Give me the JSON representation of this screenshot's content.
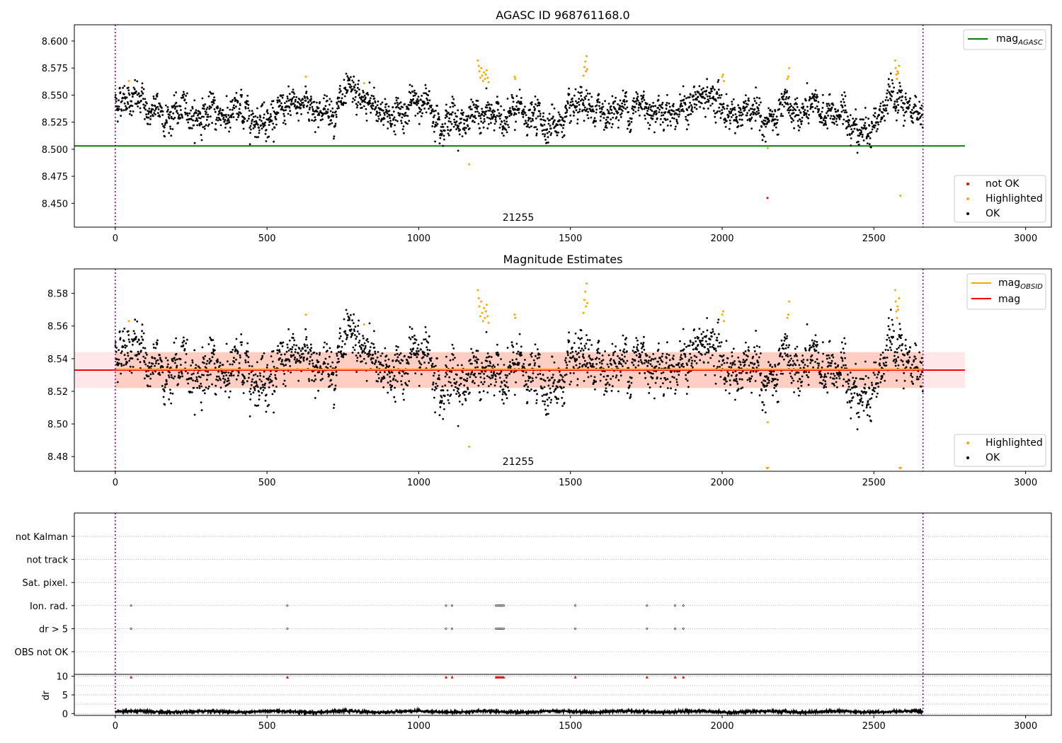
{
  "chart_data": [
    {
      "type": "scatter",
      "title": "AGASC ID 968761168.0",
      "xlim": [
        -135,
        3085
      ],
      "ylim": [
        8.428,
        8.615
      ],
      "xticks": [
        0,
        500,
        1000,
        1500,
        2000,
        2500,
        3000
      ],
      "yticks": [
        8.45,
        8.475,
        8.5,
        8.525,
        8.55,
        8.575,
        8.6
      ],
      "ytick_labels": [
        "8.450",
        "8.475",
        "8.500",
        "8.525",
        "8.550",
        "8.575",
        "8.600"
      ],
      "vlines": [
        0,
        2662
      ],
      "annotation": {
        "text": "21255",
        "x": 1330,
        "y": 8.432
      },
      "hline": {
        "name": "mag",
        "sub": "AGASC",
        "y": 8.503,
        "x0": -135,
        "x1": 2800,
        "color": "#008000"
      },
      "legend_top": [
        {
          "label": "mag",
          "sub": "AGASC",
          "color": "#008000",
          "kind": "line"
        }
      ],
      "legend_bottom": [
        {
          "label": "not OK",
          "color": "#ff0000",
          "kind": "point"
        },
        {
          "label": "Highlighted",
          "color": "#ffa500",
          "kind": "point"
        },
        {
          "label": "OK",
          "color": "#000000",
          "kind": "point"
        }
      ],
      "series": [
        {
          "name": "OK",
          "color": "#000000",
          "generated": {
            "n": 2662,
            "x0": 0,
            "x1": 2662,
            "mean": 8.533,
            "spread": 0.0065,
            "bumps": [
              [
                40,
                50,
                0.018
              ],
              [
                630,
                30,
                0.012
              ],
              [
                780,
                80,
                0.01
              ],
              [
                1010,
                50,
                0.01
              ],
              [
                1170,
                80,
                -0.006
              ],
              [
                1450,
                90,
                -0.008
              ],
              [
                1750,
                120,
                0.008
              ],
              [
                1950,
                60,
                0.012
              ],
              [
                2150,
                60,
                -0.008
              ],
              [
                2460,
                40,
                -0.012
              ],
              [
                2560,
                30,
                0.01
              ]
            ]
          }
        },
        {
          "name": "Highlighted",
          "color": "#ffa500",
          "points": [
            [
              45,
              8.563
            ],
            [
              628,
              8.567
            ],
            [
              820,
              8.561
            ],
            [
              1166,
              8.486
            ],
            [
              1195,
              8.582
            ],
            [
              1198,
              8.577
            ],
            [
              1200,
              8.572
            ],
            [
              1203,
              8.566
            ],
            [
              1206,
              8.575
            ],
            [
              1209,
              8.568
            ],
            [
              1212,
              8.563
            ],
            [
              1215,
              8.571
            ],
            [
              1218,
              8.565
            ],
            [
              1221,
              8.569
            ],
            [
              1224,
              8.573
            ],
            [
              1227,
              8.566
            ],
            [
              1230,
              8.562
            ],
            [
              1316,
              8.567
            ],
            [
              1318,
              8.565
            ],
            [
              1543,
              8.568
            ],
            [
              1546,
              8.576
            ],
            [
              1549,
              8.581
            ],
            [
              1551,
              8.572
            ],
            [
              1553,
              8.586
            ],
            [
              1555,
              8.574
            ],
            [
              2000,
              8.567
            ],
            [
              2003,
              8.569
            ],
            [
              2006,
              8.563
            ],
            [
              2150,
              8.501
            ],
            [
              2215,
              8.565
            ],
            [
              2218,
              8.567
            ],
            [
              2221,
              8.575
            ],
            [
              2570,
              8.582
            ],
            [
              2572,
              8.575
            ],
            [
              2574,
              8.569
            ],
            [
              2576,
              8.565
            ],
            [
              2578,
              8.572
            ],
            [
              2580,
              8.57
            ],
            [
              2583,
              8.577
            ],
            [
              2587,
              8.457
            ]
          ]
        },
        {
          "name": "not OK",
          "color": "#ff0000",
          "points": [
            [
              2149,
              8.455
            ]
          ]
        }
      ]
    },
    {
      "type": "scatter",
      "title": "Magnitude Estimates",
      "xlim": [
        -135,
        3085
      ],
      "ylim": [
        8.471,
        8.595
      ],
      "xticks": [
        0,
        500,
        1000,
        1500,
        2000,
        2500,
        3000
      ],
      "yticks": [
        8.48,
        8.5,
        8.52,
        8.54,
        8.56,
        8.58
      ],
      "ytick_labels": [
        "8.48",
        "8.50",
        "8.52",
        "8.54",
        "8.56",
        "8.58"
      ],
      "vlines": [
        0,
        2662
      ],
      "annotation": {
        "text": "21255",
        "x": 1330,
        "y": 8.475
      },
      "band_outer": {
        "y0": 8.522,
        "y1": 8.544,
        "x0": -135,
        "x1": 2800,
        "color": "#ffb6c1"
      },
      "band_inner": {
        "y0": 8.522,
        "y1": 8.544,
        "x0": 0,
        "x1": 2662,
        "color": "#ffa07a"
      },
      "mag_line": {
        "y": 8.533,
        "x0": -135,
        "x1": 2800,
        "color": "#ff0000"
      },
      "mag_obsid_line": {
        "y": 8.5335,
        "x0": 0,
        "x1": 2662,
        "color": "#ffa500"
      },
      "legend_top": [
        {
          "label": "mag",
          "sub": "OBSID",
          "color": "#ffa500",
          "kind": "line"
        },
        {
          "label": "mag",
          "sub": "",
          "color": "#ff0000",
          "kind": "line"
        }
      ],
      "legend_bottom": [
        {
          "label": "Highlighted",
          "color": "#ffa500",
          "kind": "point"
        },
        {
          "label": "OK",
          "color": "#000000",
          "kind": "point"
        }
      ],
      "series": [
        {
          "name": "OK",
          "color": "#000000",
          "ref": "same-as-panel-1"
        },
        {
          "name": "Highlighted",
          "color": "#ffa500",
          "ref": "same-as-panel-1",
          "offscale_markers": [
            2149,
            2587
          ]
        }
      ]
    },
    {
      "type": "scatter",
      "title": "",
      "xlim": [
        -135,
        3085
      ],
      "categories": [
        "not Kalman",
        "not track",
        "Sat. pixel.",
        "Ion. rad.",
        "dr > 5",
        "OBS not OK"
      ],
      "vlines": [
        0,
        2662
      ],
      "flag_points": {
        "Ion. rad.": [
          52,
          567,
          1090,
          1110,
          1255,
          1260,
          1265,
          1270,
          1275,
          1280,
          1516,
          1752,
          1845,
          1872
        ],
        "dr > 5": [
          52,
          567,
          1090,
          1110,
          1255,
          1260,
          1265,
          1270,
          1275,
          1280,
          1516,
          1752,
          1845,
          1872
        ]
      },
      "dr": {
        "ylabel": "dr",
        "ylim": [
          -0.5,
          10.5
        ],
        "yticks": [
          0,
          5,
          10
        ],
        "ytick_labels": [
          "0",
          "5",
          "10"
        ],
        "generated": {
          "n": 2662,
          "x0": 0,
          "x1": 2662,
          "mean": 0.5,
          "spread": 0.25
        },
        "clipped": [
          52,
          567,
          1090,
          1110,
          1255,
          1260,
          1265,
          1270,
          1275,
          1280,
          1516,
          1752,
          1845,
          1872
        ]
      }
    }
  ]
}
